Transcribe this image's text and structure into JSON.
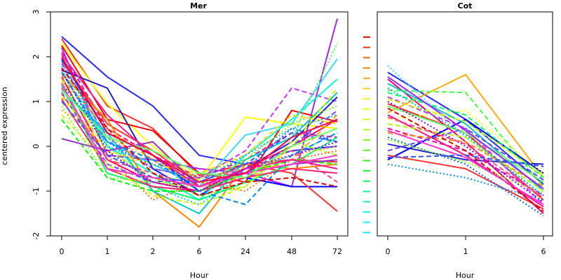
{
  "chart_data": [
    {
      "type": "line",
      "title": "Mer",
      "xlabel": "Hour",
      "ylabel": "centered expression",
      "x_categories": [
        "0",
        "1",
        "2",
        "6",
        "24",
        "48",
        "72"
      ],
      "yticks": [
        "-2",
        "-1",
        "0",
        "1",
        "2",
        "3"
      ],
      "ylim": [
        -2,
        3
      ],
      "grid": false,
      "legend": "none",
      "series": [
        {
          "values": [
            2.45,
            1.55,
            0.9,
            -0.2,
            -0.4,
            -0.1,
            0.0
          ],
          "color": "#2a2aff",
          "dash": "solid"
        },
        {
          "values": [
            2.4,
            0.9,
            0.4,
            -0.65,
            -0.4,
            -0.3,
            -0.35
          ],
          "color": "#ff2a2a",
          "dash": "solid"
        },
        {
          "values": [
            2.3,
            0.95,
            0.0,
            -0.75,
            0.65,
            0.5,
            0.4
          ],
          "color": "#ffff00",
          "dash": "solid"
        },
        {
          "values": [
            2.25,
            0.6,
            0.35,
            -0.6,
            -0.8,
            0.8,
            0.55
          ],
          "color": "#ff0000",
          "dash": "solid"
        },
        {
          "values": [
            2.2,
            -0.2,
            -0.3,
            -0.5,
            -0.6,
            -0.9,
            2.85
          ],
          "color": "#aa22ff",
          "dash": "solid"
        },
        {
          "values": [
            2.1,
            0.4,
            -0.2,
            -0.7,
            -0.3,
            0.3,
            0.2
          ],
          "color": "#ff00aa",
          "dash": "dashed"
        },
        {
          "values": [
            2.0,
            0.1,
            -0.4,
            -0.9,
            0.25,
            0.5,
            1.95
          ],
          "color": "#33ddff",
          "dash": "solid"
        },
        {
          "values": [
            1.95,
            0.3,
            -0.2,
            -1.0,
            -0.7,
            -0.9,
            -0.9
          ],
          "color": "#0000ff",
          "dash": "solid"
        },
        {
          "values": [
            1.9,
            0.5,
            -0.1,
            -0.8,
            -0.4,
            -0.6,
            -1.45
          ],
          "color": "#ff3333",
          "dash": "solid"
        },
        {
          "values": [
            1.85,
            0.2,
            -0.5,
            -0.7,
            -0.1,
            1.3,
            1.0
          ],
          "color": "#cc33ff",
          "dash": "dashed"
        },
        {
          "values": [
            1.8,
            0.2,
            -0.9,
            -1.3,
            -0.6,
            -0.2,
            0.3
          ],
          "color": "#00ccff",
          "dash": "dotted"
        },
        {
          "values": [
            1.75,
            0.0,
            -0.8,
            -0.6,
            -0.3,
            0.2,
            2.3
          ],
          "color": "#44ff44",
          "dash": "dotted"
        },
        {
          "values": [
            1.7,
            1.3,
            -0.5,
            -1.1,
            -0.5,
            0.1,
            1.1
          ],
          "color": "#2222cc",
          "dash": "solid"
        },
        {
          "values": [
            1.65,
            0.0,
            -0.6,
            -1.2,
            -0.2,
            0.6,
            1.5
          ],
          "color": "#00ffcc",
          "dash": "solid"
        },
        {
          "values": [
            1.6,
            0.6,
            -1.0,
            -1.8,
            -0.4,
            -0.5,
            -0.4
          ],
          "color": "#ff8800",
          "dash": "solid"
        },
        {
          "values": [
            1.55,
            -0.3,
            -0.8,
            -1.0,
            -0.5,
            0.0,
            0.6
          ],
          "color": "#ff0066",
          "dash": "solid"
        },
        {
          "values": [
            1.5,
            0.4,
            -0.3,
            -0.9,
            -0.7,
            -0.3,
            0.7
          ],
          "color": "#ffaa00",
          "dash": "dashed"
        },
        {
          "values": [
            1.45,
            -0.1,
            -0.7,
            -1.1,
            -0.9,
            0.1,
            -0.2
          ],
          "color": "#aaff00",
          "dash": "dashed"
        },
        {
          "values": [
            1.4,
            0.1,
            -0.5,
            -0.7,
            -0.5,
            0.4,
            0.1
          ],
          "color": "#0066ff",
          "dash": "dotted"
        },
        {
          "values": [
            1.35,
            -0.6,
            -0.9,
            -1.2,
            -0.8,
            -0.4,
            0.2
          ],
          "color": "#00ff66",
          "dash": "solid"
        },
        {
          "values": [
            1.3,
            -0.3,
            -0.6,
            -0.9,
            -0.4,
            -0.1,
            -0.8
          ],
          "color": "#ff4488",
          "dash": "dashed"
        },
        {
          "values": [
            1.25,
            0.3,
            -1.0,
            -1.5,
            -0.3,
            0.2,
            1.2
          ],
          "color": "#00cccc",
          "dash": "solid"
        },
        {
          "values": [
            1.2,
            -0.4,
            -0.8,
            -0.7,
            -0.6,
            0.0,
            0.8
          ],
          "color": "#6644ff",
          "dash": "dashed"
        },
        {
          "values": [
            1.15,
            -0.2,
            -1.2,
            -0.8,
            -1.0,
            -0.3,
            -0.1
          ],
          "color": "#ff6600",
          "dash": "dotted"
        },
        {
          "values": [
            1.1,
            -0.1,
            -0.4,
            -0.6,
            -0.2,
            0.7,
            0.5
          ],
          "color": "#ffdd00",
          "dash": "dashed"
        },
        {
          "values": [
            1.05,
            -0.5,
            -0.9,
            -1.0,
            -0.7,
            -0.5,
            -0.6
          ],
          "color": "#ff2277",
          "dash": "solid"
        },
        {
          "values": [
            1.0,
            -0.2,
            -0.7,
            -0.8,
            -0.4,
            0.3,
            0.1
          ],
          "color": "#3355ff",
          "dash": "dashed"
        },
        {
          "values": [
            0.9,
            -0.7,
            -0.8,
            -0.9,
            -0.3,
            0.5,
            0.9
          ],
          "color": "#77ff00",
          "dash": "dotted"
        },
        {
          "values": [
            0.8,
            0.2,
            -0.3,
            -0.7,
            -0.5,
            -0.2,
            0.0
          ],
          "color": "#ffaa00",
          "dash": "dotted"
        },
        {
          "values": [
            0.7,
            -0.4,
            -1.1,
            -1.3,
            -0.9,
            0.0,
            1.3
          ],
          "color": "#ccff00",
          "dash": "dashed"
        },
        {
          "values": [
            0.6,
            -0.7,
            -1.0,
            -1.0,
            -0.6,
            -0.3,
            -0.4
          ],
          "color": "#00ff00",
          "dash": "dashed"
        },
        {
          "values": [
            0.17,
            -0.1,
            0.1,
            -0.9,
            -0.6,
            -0.4,
            -0.3
          ],
          "color": "#9933cc",
          "dash": "solid"
        },
        {
          "values": [
            1.65,
            0.1,
            -0.3,
            -1.0,
            -1.3,
            -0.2,
            0.3
          ],
          "color": "#0088ff",
          "dash": "dashed"
        },
        {
          "values": [
            1.9,
            0.0,
            -0.4,
            -0.8,
            -0.2,
            0.4,
            0.7
          ],
          "color": "#00aaff",
          "dash": "dotted"
        },
        {
          "values": [
            2.05,
            0.7,
            -0.2,
            -0.9,
            -0.5,
            -0.3,
            -0.5
          ],
          "color": "#ff1493",
          "dash": "solid"
        },
        {
          "values": [
            1.75,
            0.4,
            -0.6,
            -1.1,
            -0.8,
            -0.7,
            -0.9
          ],
          "color": "#dd0000",
          "dash": "dashed"
        },
        {
          "values": [
            1.4,
            -0.5,
            -0.7,
            -0.9,
            -0.6,
            -0.4,
            -0.2
          ],
          "color": "#ff33cc",
          "dash": "solid"
        },
        {
          "values": [
            1.25,
            0.2,
            -0.1,
            -0.6,
            -0.7,
            0.0,
            0.4
          ],
          "color": "#66ff66",
          "dash": "solid"
        },
        {
          "values": [
            1.7,
            -0.1,
            -0.8,
            -1.0,
            -0.5,
            -0.2,
            0.1
          ],
          "color": "#8800ff",
          "dash": "dotted"
        },
        {
          "values": [
            2.0,
            0.3,
            -0.2,
            -0.8,
            -0.6,
            0.2,
            0.6
          ],
          "color": "#ff0044",
          "dash": "solid"
        }
      ]
    },
    {
      "type": "line",
      "title": "Cot",
      "xlabel": "Hour",
      "ylabel": "",
      "x_categories": [
        "0",
        "1",
        "6"
      ],
      "yticks": [],
      "ylim": [
        -2,
        3
      ],
      "grid": false,
      "legend": "none",
      "series": [
        {
          "values": [
            1.65,
            0.6,
            -0.85
          ],
          "color": "#2a2aff",
          "dash": "solid"
        },
        {
          "values": [
            0.95,
            0.3,
            -1.2
          ],
          "color": "#ff2a2a",
          "dash": "solid"
        },
        {
          "values": [
            0.75,
            1.6,
            -0.7
          ],
          "color": "#ffaa00",
          "dash": "solid"
        },
        {
          "values": [
            1.25,
            1.2,
            -0.9
          ],
          "color": "#44ff44",
          "dash": "dashed"
        },
        {
          "values": [
            1.8,
            0.2,
            -1.1
          ],
          "color": "#33ddff",
          "dash": "dotted"
        },
        {
          "values": [
            -0.3,
            0.6,
            -0.6
          ],
          "color": "#0000ff",
          "dash": "solid"
        },
        {
          "values": [
            0.05,
            -0.3,
            -0.4
          ],
          "color": "#2222cc",
          "dash": "solid"
        },
        {
          "values": [
            -0.2,
            -0.5,
            -1.4
          ],
          "color": "#ff3333",
          "dash": "solid"
        },
        {
          "values": [
            1.5,
            0.1,
            -1.5
          ],
          "color": "#ff0066",
          "dash": "solid"
        },
        {
          "values": [
            1.1,
            0.4,
            -1.3
          ],
          "color": "#cc33ff",
          "dash": "dashed"
        },
        {
          "values": [
            0.2,
            -0.4,
            -1.55
          ],
          "color": "#0066ff",
          "dash": "dotted"
        },
        {
          "values": [
            0.6,
            0.8,
            -0.6
          ],
          "color": "#ffff00",
          "dash": "dotted"
        },
        {
          "values": [
            1.4,
            0.5,
            -1.0
          ],
          "color": "#00cccc",
          "dash": "solid"
        },
        {
          "values": [
            0.4,
            -0.1,
            -1.1
          ],
          "color": "#ff00aa",
          "dash": "dashed"
        },
        {
          "values": [
            0.9,
            0.3,
            -0.8
          ],
          "color": "#66ff66",
          "dash": "solid"
        },
        {
          "values": [
            1.0,
            0.0,
            -1.25
          ],
          "color": "#8800ff",
          "dash": "dotted"
        },
        {
          "values": [
            0.3,
            0.1,
            -0.9
          ],
          "color": "#ff8800",
          "dash": "dashed"
        },
        {
          "values": [
            -0.4,
            -0.7,
            -1.2
          ],
          "color": "#0088ff",
          "dash": "dotted"
        },
        {
          "values": [
            0.7,
            -0.2,
            -1.35
          ],
          "color": "#ff1493",
          "dash": "solid"
        },
        {
          "values": [
            1.2,
            0.7,
            -0.7
          ],
          "color": "#00ff66",
          "dash": "dashed"
        },
        {
          "values": [
            0.5,
            0.2,
            -1.0
          ],
          "color": "#aaff00",
          "dash": "dashed"
        },
        {
          "values": [
            -0.1,
            0.4,
            -0.75
          ],
          "color": "#6644ff",
          "dash": "dashed"
        },
        {
          "values": [
            0.85,
            -0.1,
            -1.45
          ],
          "color": "#dd0000",
          "dash": "dashed"
        },
        {
          "values": [
            1.55,
            0.35,
            -0.95
          ],
          "color": "#aa22ff",
          "dash": "solid"
        },
        {
          "values": [
            0.15,
            -0.35,
            -1.05
          ],
          "color": "#77ff00",
          "dash": "dotted"
        },
        {
          "values": [
            0.65,
            0.05,
            -1.15
          ],
          "color": "#ff4488",
          "dash": "dashed"
        },
        {
          "values": [
            1.05,
            0.55,
            -0.65
          ],
          "color": "#ccff00",
          "dash": "dashed"
        },
        {
          "values": [
            0.35,
            -0.25,
            -1.3
          ],
          "color": "#ff33cc",
          "dash": "solid"
        },
        {
          "values": [
            1.3,
            0.25,
            -1.1
          ],
          "color": "#00aaff",
          "dash": "dotted"
        },
        {
          "values": [
            -0.25,
            -0.2,
            -0.45
          ],
          "color": "#3355ff",
          "dash": "dashed"
        }
      ]
    }
  ],
  "legend_swatches": [
    "#ff0000",
    "#ff3300",
    "#ff6600",
    "#ff8800",
    "#ffaa00",
    "#ffcc00",
    "#ffee00",
    "#eeff00",
    "#ccff00",
    "#aaff00",
    "#88ff00",
    "#55ff00",
    "#22ff00",
    "#00ff22",
    "#00ff55",
    "#00ff88",
    "#00ffaa",
    "#00ffcc",
    "#00ffee",
    "#00eeff"
  ]
}
